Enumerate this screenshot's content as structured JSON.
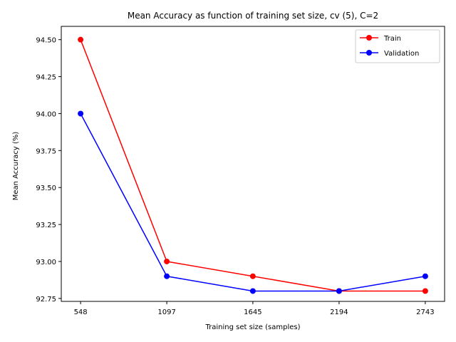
{
  "chart_data": {
    "type": "line",
    "title": "Mean Accuracy as function of training set size, cv (5), C=2",
    "xlabel": "Training set size (samples)",
    "ylabel": "Mean Accuracy (%)",
    "x": [
      548,
      1097,
      1645,
      2194,
      2743
    ],
    "x_tick_labels": [
      "548",
      "1097",
      "1645",
      "2194",
      "2743"
    ],
    "y_ticks": [
      92.75,
      93.0,
      93.25,
      93.5,
      93.75,
      94.0,
      94.25,
      94.5
    ],
    "y_tick_labels": [
      "92.75",
      "93.00",
      "93.25",
      "93.50",
      "93.75",
      "94.00",
      "94.25",
      "94.50"
    ],
    "xlim": [
      425,
      2866
    ],
    "ylim": [
      92.73,
      94.59
    ],
    "grid": false,
    "legend_position": "top-right",
    "series": [
      {
        "name": "Train",
        "color": "#ff0000",
        "marker": "circle",
        "values": [
          94.5,
          93.0,
          92.9,
          92.8,
          92.8
        ]
      },
      {
        "name": "Validation",
        "color": "#0000ff",
        "marker": "circle",
        "values": [
          94.0,
          92.9,
          92.8,
          92.8,
          92.9
        ]
      }
    ]
  }
}
